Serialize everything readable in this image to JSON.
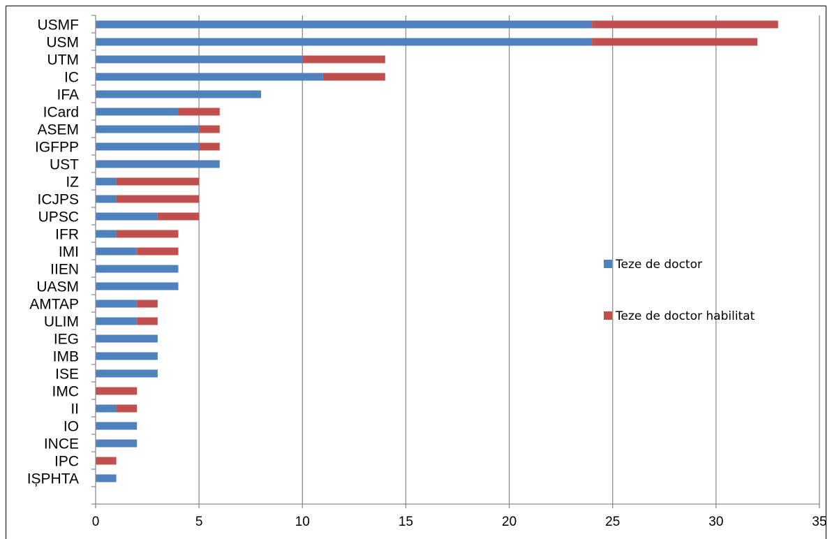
{
  "chart_data": {
    "type": "bar",
    "orientation": "horizontal",
    "stacked": true,
    "categories": [
      "USMF",
      "USM",
      "UTM",
      "IC",
      "IFA",
      "ICard",
      "ASEM",
      "IGFPP",
      "UST",
      "IZ",
      "ICJPS",
      "UPSC",
      "IFR",
      "IMI",
      "IIEN",
      "UASM",
      "AMTAP",
      "ULIM",
      "IEG",
      "IMB",
      "ISE",
      "IMC",
      "II",
      "IO",
      "INCE",
      "IPC",
      "IȘPHTA"
    ],
    "series": [
      {
        "name": "Teze de doctor",
        "color": "#4f81bd",
        "values": [
          24,
          24,
          10,
          11,
          8,
          4,
          5,
          5,
          6,
          1,
          1,
          3,
          1,
          2,
          4,
          4,
          2,
          2,
          3,
          3,
          3,
          0,
          1,
          2,
          2,
          0,
          1
        ]
      },
      {
        "name": "Teze de doctor habilitat",
        "color": "#c0504d",
        "values": [
          9,
          8,
          4,
          3,
          0,
          2,
          1,
          1,
          0,
          4,
          4,
          2,
          3,
          2,
          0,
          0,
          1,
          1,
          0,
          0,
          0,
          2,
          1,
          0,
          0,
          1,
          0
        ]
      }
    ],
    "xlim": [
      0,
      35
    ],
    "xticks": [
      "0",
      "5",
      "10",
      "15",
      "20",
      "25",
      "30",
      "35"
    ],
    "grid": "vertical",
    "legend_position": "right"
  }
}
